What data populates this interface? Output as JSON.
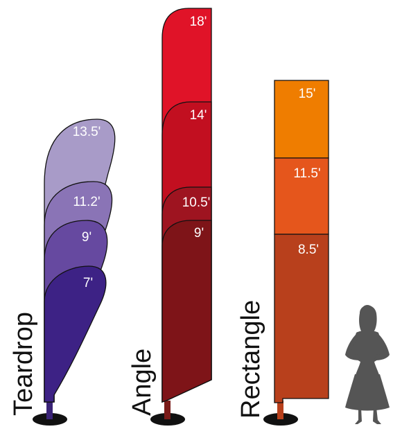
{
  "flags": {
    "teardrop": {
      "name": "Teardrop",
      "sizes": [
        {
          "label": "13.5'",
          "color": "#a89bc8"
        },
        {
          "label": "11.2'",
          "color": "#8a74b6"
        },
        {
          "label": "9'",
          "color": "#6649a0"
        },
        {
          "label": "7'",
          "color": "#3d2285"
        }
      ],
      "pole_color": "#3a2377"
    },
    "angle": {
      "name": "Angle",
      "sizes": [
        {
          "label": "18'",
          "color": "#e01328"
        },
        {
          "label": "14'",
          "color": "#c20f20"
        },
        {
          "label": "10.5'",
          "color": "#9e1420"
        },
        {
          "label": "9'",
          "color": "#7e1418"
        }
      ],
      "pole_color": "#7a1a18"
    },
    "rectangle": {
      "name": "Rectangle",
      "sizes": [
        {
          "label": "15'",
          "color": "#ef7d00"
        },
        {
          "label": "11.5'",
          "color": "#e5561c"
        },
        {
          "label": "8.5'",
          "color": "#b8401c"
        }
      ],
      "pole_color": "#b8401c"
    }
  },
  "colors": {
    "outline": "#111111",
    "base": "#111111",
    "silhouette": "#555555"
  },
  "icons": {
    "scale_figure": "woman-silhouette-icon"
  }
}
